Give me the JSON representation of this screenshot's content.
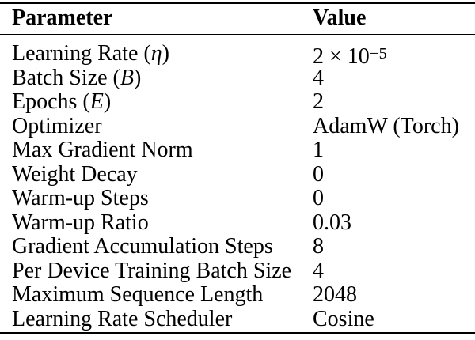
{
  "colors": {
    "background": "#ffffff",
    "text": "#000000",
    "rule": "#000000"
  },
  "table": {
    "columns": [
      {
        "label": "Parameter"
      },
      {
        "label": "Value"
      }
    ],
    "rows": [
      {
        "param": [
          {
            "t": "Learning Rate ("
          },
          {
            "t": "η",
            "s": "italic"
          },
          {
            "t": ")"
          }
        ],
        "value": [
          {
            "t": "2 × 10"
          },
          {
            "t": "−5",
            "s": "sup"
          }
        ]
      },
      {
        "param": [
          {
            "t": "Batch Size ("
          },
          {
            "t": "B",
            "s": "italic"
          },
          {
            "t": ")"
          }
        ],
        "value": [
          {
            "t": "4"
          }
        ]
      },
      {
        "param": [
          {
            "t": "Epochs ("
          },
          {
            "t": "E",
            "s": "italic"
          },
          {
            "t": ")"
          }
        ],
        "value": [
          {
            "t": "2"
          }
        ]
      },
      {
        "param": [
          {
            "t": "Optimizer"
          }
        ],
        "value": [
          {
            "t": "AdamW (Torch)"
          }
        ]
      },
      {
        "param": [
          {
            "t": "Max Gradient Norm"
          }
        ],
        "value": [
          {
            "t": "1"
          }
        ]
      },
      {
        "param": [
          {
            "t": "Weight Decay"
          }
        ],
        "value": [
          {
            "t": "0"
          }
        ]
      },
      {
        "param": [
          {
            "t": "Warm-up Steps"
          }
        ],
        "value": [
          {
            "t": "0"
          }
        ]
      },
      {
        "param": [
          {
            "t": "Warm-up Ratio"
          }
        ],
        "value": [
          {
            "t": "0.03"
          }
        ]
      },
      {
        "param": [
          {
            "t": "Gradient Accumulation Steps"
          }
        ],
        "value": [
          {
            "t": "8"
          }
        ]
      },
      {
        "param": [
          {
            "t": "Per Device Training Batch Size"
          }
        ],
        "value": [
          {
            "t": "4"
          }
        ]
      },
      {
        "param": [
          {
            "t": "Maximum Sequence Length"
          }
        ],
        "value": [
          {
            "t": "2048"
          }
        ]
      },
      {
        "param": [
          {
            "t": "Learning Rate Scheduler"
          }
        ],
        "value": [
          {
            "t": "Cosine"
          }
        ]
      }
    ]
  }
}
